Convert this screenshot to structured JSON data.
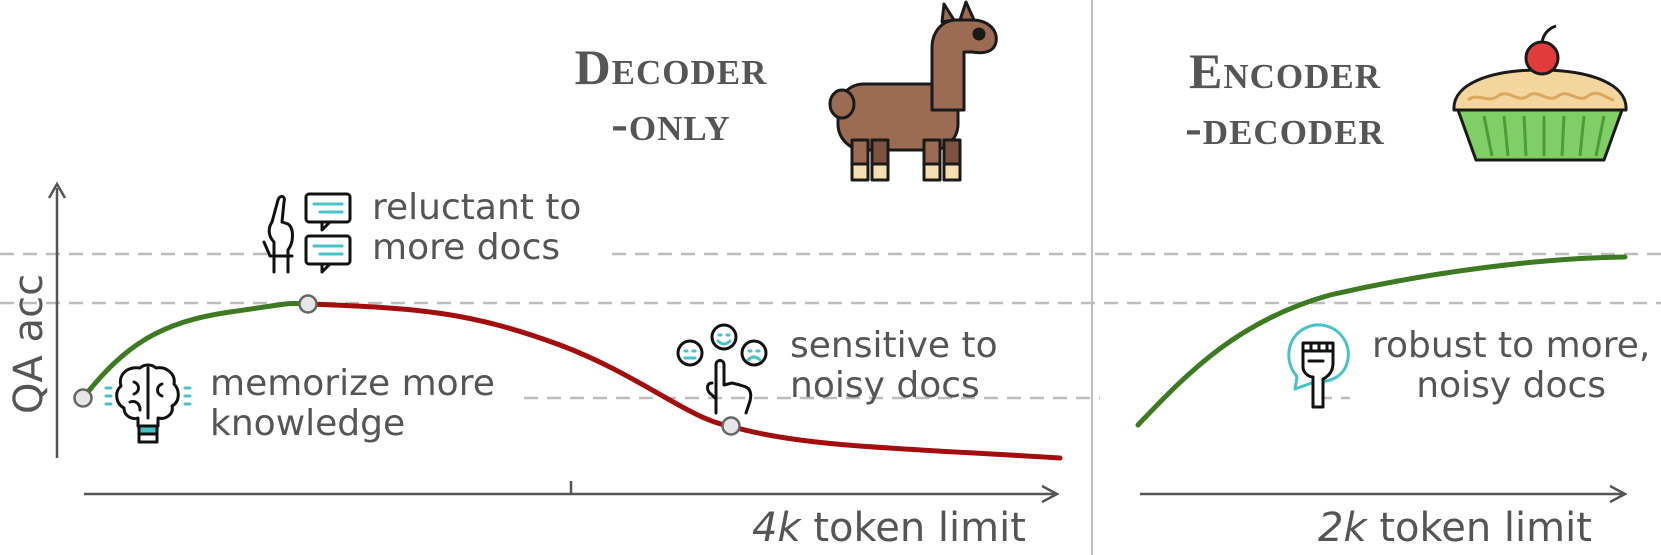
{
  "left_panel": {
    "title_line1": "Decoder",
    "title_line2": "-only",
    "mascot_icon": "llama-icon",
    "x_axis": {
      "unit_prefix": "4k",
      "suffix": " token limit"
    },
    "y_axis_label": "QA acc",
    "annotations": {
      "memorize": {
        "line1": "memorize more",
        "line2": "knowledge",
        "icon": "brain-icon"
      },
      "reluctant": {
        "line1": "reluctant to",
        "line2": "more docs",
        "icon": "stop-hand-chat-icon"
      },
      "sensitive": {
        "line1": "sensitive to",
        "line2": "noisy docs",
        "icon": "emoji-choice-icon"
      }
    }
  },
  "right_panel": {
    "title_line1": "Encoder",
    "title_line2": "-decoder",
    "mascot_icon": "pie-icon",
    "x_axis": {
      "unit_prefix": "2k",
      "suffix": " token limit"
    },
    "annotations": {
      "robust": {
        "line1": "robust to more,",
        "line2": "noisy docs",
        "icon": "raised-fist-icon"
      }
    }
  },
  "colors": {
    "rising_curve": "#3d7a22",
    "falling_curve": "#a30d0d",
    "text": "#555555",
    "axis": "#555555",
    "guide": "#bdbdbd",
    "accent_icon": "#46c2c9"
  }
}
